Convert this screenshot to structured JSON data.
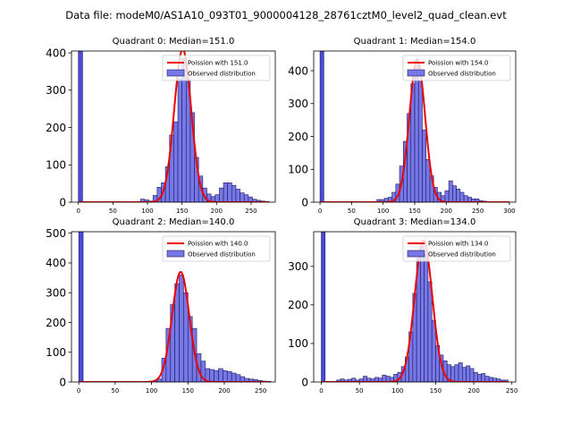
{
  "page": {
    "suptitle": "Data file: modeM0/AS1A10_093T01_9000004128_28761cztM0_level2_quad_clean.evt"
  },
  "colors": {
    "bar_fill": "#7777e6",
    "bar_edge": "#1a1a60",
    "curve": "#ee0000",
    "spike": "#4a4ad8"
  },
  "chart_data": [
    {
      "type": "bar",
      "title": "Quadrant 0: Median=151.0",
      "xlim": [
        -10,
        285
      ],
      "ylim": [
        0,
        405
      ],
      "xticks": [
        0,
        50,
        100,
        150,
        200,
        250
      ],
      "yticks": [
        0,
        100,
        200,
        300,
        400
      ],
      "bin_width": 6.0,
      "bins": [
        [
          0,
          405
        ],
        [
          90,
          8
        ],
        [
          96,
          6
        ],
        [
          102,
          3
        ],
        [
          108,
          18
        ],
        [
          114,
          40
        ],
        [
          120,
          52
        ],
        [
          126,
          95
        ],
        [
          132,
          180
        ],
        [
          138,
          215
        ],
        [
          144,
          330
        ],
        [
          150,
          385
        ],
        [
          156,
          330
        ],
        [
          162,
          240
        ],
        [
          168,
          120
        ],
        [
          174,
          70
        ],
        [
          180,
          38
        ],
        [
          186,
          22
        ],
        [
          192,
          15
        ],
        [
          198,
          20
        ],
        [
          204,
          38
        ],
        [
          210,
          52
        ],
        [
          216,
          52
        ],
        [
          222,
          45
        ],
        [
          228,
          35
        ],
        [
          234,
          25
        ],
        [
          240,
          20
        ],
        [
          246,
          14
        ],
        [
          252,
          8
        ],
        [
          258,
          5
        ],
        [
          264,
          3
        ],
        [
          270,
          2
        ]
      ],
      "poisson_lambda": 151.0,
      "poisson_peak": 410,
      "legend": [
        "Poission with 151.0",
        "Observed distribution"
      ]
    },
    {
      "type": "bar",
      "title": "Quadrant 1: Median=154.0",
      "xlim": [
        -10,
        310
      ],
      "ylim": [
        0,
        460
      ],
      "xticks": [
        0,
        50,
        100,
        150,
        200,
        250,
        300
      ],
      "yticks": [
        0,
        100,
        200,
        300,
        400
      ],
      "bin_width": 6.0,
      "bins": [
        [
          0,
          460
        ],
        [
          90,
          8
        ],
        [
          96,
          8
        ],
        [
          102,
          12
        ],
        [
          108,
          15
        ],
        [
          114,
          30
        ],
        [
          120,
          55
        ],
        [
          126,
          110
        ],
        [
          132,
          185
        ],
        [
          138,
          270
        ],
        [
          144,
          360
        ],
        [
          150,
          430
        ],
        [
          156,
          370
        ],
        [
          162,
          220
        ],
        [
          168,
          130
        ],
        [
          174,
          80
        ],
        [
          180,
          45
        ],
        [
          186,
          30
        ],
        [
          192,
          20
        ],
        [
          198,
          35
        ],
        [
          204,
          65
        ],
        [
          210,
          50
        ],
        [
          216,
          40
        ],
        [
          222,
          30
        ],
        [
          228,
          20
        ],
        [
          234,
          15
        ],
        [
          240,
          10
        ],
        [
          246,
          10
        ],
        [
          252,
          5
        ],
        [
          258,
          3
        ],
        [
          264,
          2
        ]
      ],
      "poisson_lambda": 154.0,
      "poisson_peak": 435,
      "legend": [
        "Poission with 154.0",
        "Observed distribution"
      ]
    },
    {
      "type": "bar",
      "title": "Quadrant 2: Median=140.0",
      "xlim": [
        -10,
        270
      ],
      "ylim": [
        0,
        505
      ],
      "xticks": [
        0,
        50,
        100,
        150,
        200,
        250
      ],
      "yticks": [
        0,
        100,
        200,
        300,
        400,
        500
      ],
      "bin_width": 6.0,
      "bins": [
        [
          0,
          505
        ],
        [
          84,
          2
        ],
        [
          96,
          3
        ],
        [
          102,
          5
        ],
        [
          108,
          10
        ],
        [
          114,
          80
        ],
        [
          120,
          180
        ],
        [
          126,
          260
        ],
        [
          132,
          330
        ],
        [
          138,
          360
        ],
        [
          144,
          300
        ],
        [
          150,
          220
        ],
        [
          156,
          180
        ],
        [
          162,
          95
        ],
        [
          168,
          70
        ],
        [
          174,
          45
        ],
        [
          180,
          42
        ],
        [
          186,
          38
        ],
        [
          192,
          45
        ],
        [
          198,
          38
        ],
        [
          204,
          35
        ],
        [
          210,
          30
        ],
        [
          216,
          25
        ],
        [
          222,
          18
        ],
        [
          228,
          12
        ],
        [
          234,
          10
        ],
        [
          240,
          8
        ],
        [
          246,
          5
        ],
        [
          252,
          3
        ],
        [
          258,
          2
        ]
      ],
      "poisson_lambda": 140.0,
      "poisson_peak": 370,
      "legend": [
        "Poission with 140.0",
        "Observed distribution"
      ]
    },
    {
      "type": "bar",
      "title": "Quadrant 3: Median=134.0",
      "xlim": [
        -10,
        255
      ],
      "ylim": [
        0,
        390
      ],
      "xticks": [
        0,
        50,
        100,
        150,
        200,
        250
      ],
      "yticks": [
        0,
        100,
        200,
        300
      ],
      "bin_width": 5.0,
      "bins": [
        [
          0,
          390
        ],
        [
          20,
          5
        ],
        [
          25,
          8
        ],
        [
          30,
          5
        ],
        [
          35,
          7
        ],
        [
          40,
          10
        ],
        [
          45,
          5
        ],
        [
          50,
          8
        ],
        [
          55,
          15
        ],
        [
          60,
          10
        ],
        [
          65,
          8
        ],
        [
          70,
          12
        ],
        [
          75,
          10
        ],
        [
          80,
          18
        ],
        [
          85,
          15
        ],
        [
          90,
          12
        ],
        [
          95,
          20
        ],
        [
          100,
          25
        ],
        [
          105,
          40
        ],
        [
          110,
          65
        ],
        [
          115,
          130
        ],
        [
          120,
          230
        ],
        [
          125,
          320
        ],
        [
          130,
          360
        ],
        [
          135,
          330
        ],
        [
          140,
          260
        ],
        [
          145,
          160
        ],
        [
          150,
          95
        ],
        [
          155,
          70
        ],
        [
          160,
          55
        ],
        [
          165,
          45
        ],
        [
          170,
          40
        ],
        [
          175,
          45
        ],
        [
          180,
          50
        ],
        [
          185,
          38
        ],
        [
          190,
          42
        ],
        [
          195,
          35
        ],
        [
          200,
          25
        ],
        [
          205,
          20
        ],
        [
          210,
          22
        ],
        [
          215,
          15
        ],
        [
          220,
          12
        ],
        [
          225,
          10
        ],
        [
          230,
          8
        ],
        [
          235,
          5
        ],
        [
          240,
          5
        ]
      ],
      "poisson_lambda": 134.0,
      "poisson_peak": 368,
      "legend": [
        "Poission with 134.0",
        "Observed distribution"
      ]
    }
  ]
}
